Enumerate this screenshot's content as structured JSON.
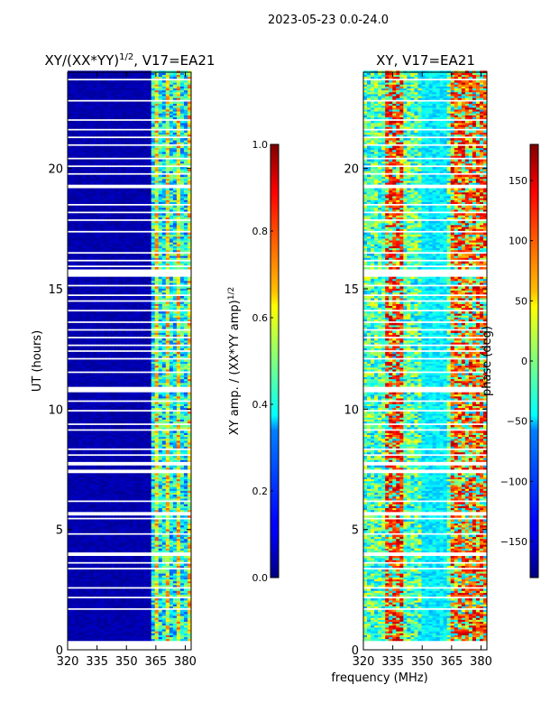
{
  "figure": {
    "suptitle": "2023-05-23 0.0-24.0"
  },
  "chart_data": [
    {
      "type": "heatmap",
      "title_main": "XY/(XX*YY)",
      "title_exp": "1/2",
      "title_suffix": ", V17=EA21",
      "xlabel": "",
      "ylabel": "UT (hours)",
      "xlim": [
        320,
        383
      ],
      "ylim": [
        0,
        24
      ],
      "xticks": [
        320,
        335,
        350,
        365,
        380
      ],
      "yticks": [
        0,
        5,
        10,
        15,
        20
      ],
      "colorbar": {
        "label_main": "XY amp. / (XX*YY amp)",
        "label_exp": "1/2",
        "range": [
          0.0,
          1.0
        ],
        "ticks": [
          "0.0",
          "0.2",
          "0.4",
          "0.6",
          "0.8",
          "1.0"
        ],
        "tick_values": [
          0.0,
          0.2,
          0.4,
          0.6,
          0.8,
          1.0
        ],
        "colormap": "jet"
      }
    },
    {
      "type": "heatmap",
      "title": "XY, V17=EA21",
      "xlabel": "frequency (MHz)",
      "ylabel": "",
      "xlim": [
        320,
        383
      ],
      "ylim": [
        0,
        24
      ],
      "xticks": [
        320,
        335,
        350,
        365,
        380
      ],
      "yticks": [
        0,
        5,
        10,
        15,
        20
      ],
      "colorbar": {
        "label": "phase (deg)",
        "range": [
          -180,
          180
        ],
        "ticks": [
          "150",
          "100",
          "50",
          "0",
          "−50",
          "−100",
          "−150"
        ],
        "tick_values": [
          150,
          100,
          50,
          0,
          -50,
          -100,
          -150
        ],
        "colormap": "jet"
      }
    }
  ]
}
